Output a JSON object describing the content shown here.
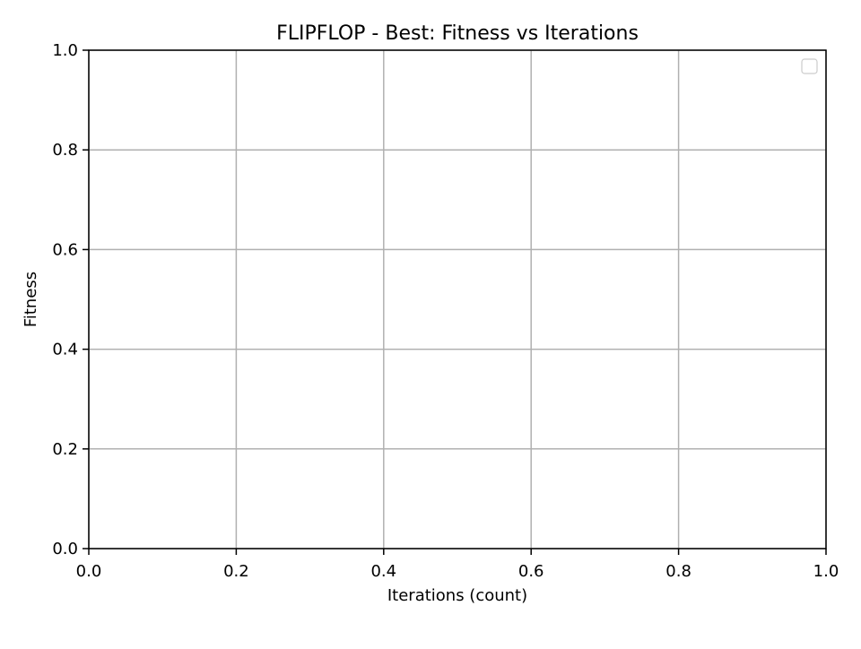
{
  "chart_data": {
    "type": "line",
    "title": "FLIPFLOP - Best: Fitness vs Iterations",
    "xlabel": "Iterations (count)",
    "ylabel": "Fitness",
    "xlim": [
      0.0,
      1.0
    ],
    "ylim": [
      0.0,
      1.0
    ],
    "xticks": [
      "0.0",
      "0.2",
      "0.4",
      "0.6",
      "0.8",
      "1.0"
    ],
    "yticks": [
      "0.0",
      "0.2",
      "0.4",
      "0.6",
      "0.8",
      "1.0"
    ],
    "grid": true,
    "legend": {
      "placement": "upper-right",
      "entries": []
    },
    "series": []
  },
  "colors": {
    "background": "#ffffff",
    "axes": "#000000",
    "grid": "#b0b0b0",
    "legend_border": "#cccccc"
  }
}
